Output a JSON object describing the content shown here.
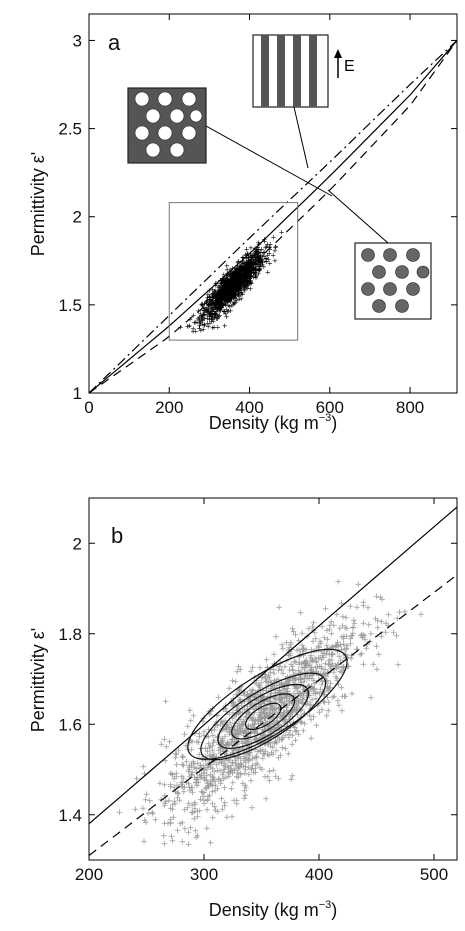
{
  "chart_data": [
    {
      "panel": "a",
      "type": "scatter",
      "xlabel": "Density (kg m",
      "xlabel_sup": "−3",
      "xlabel_close": ")",
      "ylabel": "Permittivity ε'",
      "xlim": [
        0,
        917
      ],
      "ylim": [
        1,
        3.15
      ],
      "xticks": [
        0,
        200,
        400,
        600,
        800
      ],
      "yticks": [
        1,
        1.5,
        2,
        2.5,
        3
      ],
      "ytick_labels": [
        "1",
        "1.5",
        "2",
        "2.5",
        "3"
      ],
      "scatter_cloud": {
        "center": [
          360,
          1.61
        ],
        "approx_range_x": [
          200,
          510
        ],
        "approx_range_y": [
          1.32,
          1.95
        ],
        "color": "#000000"
      },
      "inset_box": {
        "x": [
          200,
          520
        ],
        "y": [
          1.3,
          2.08
        ]
      },
      "lines": [
        {
          "style": "solid",
          "x": [
            0,
            200,
            400,
            600,
            800,
            917
          ],
          "y": [
            1.0,
            1.38,
            1.79,
            2.23,
            2.69,
            3.0
          ]
        },
        {
          "style": "dash-dot",
          "x": [
            0,
            200,
            400,
            600,
            800,
            917
          ],
          "y": [
            1.0,
            1.44,
            1.88,
            2.31,
            2.75,
            3.0
          ]
        },
        {
          "style": "dashed",
          "x": [
            0,
            200,
            400,
            600,
            800,
            917
          ],
          "y": [
            1.0,
            1.32,
            1.71,
            2.15,
            2.63,
            3.0
          ]
        }
      ],
      "insets": [
        {
          "name": "holes",
          "description_icon": "grey-square-with-white-circles"
        },
        {
          "name": "layers",
          "description_icon": "vertical-stripes",
          "field_label": "E"
        },
        {
          "name": "spheres",
          "description_icon": "white-square-with-grey-circles"
        }
      ]
    },
    {
      "panel": "b",
      "type": "scatter",
      "xlabel": "Density (kg m",
      "xlabel_sup": "−3",
      "xlabel_close": ")",
      "ylabel": "Permittivity ε'",
      "xlim": [
        200,
        520
      ],
      "ylim": [
        1.3,
        2.1
      ],
      "xticks": [
        200,
        300,
        400,
        500
      ],
      "yticks": [
        1.4,
        1.6,
        1.8,
        2.0
      ],
      "ytick_labels": [
        "1.4",
        "1.6",
        "1.8",
        "2"
      ],
      "scatter_cloud": {
        "center": [
          350,
          1.61
        ],
        "approx_range_x": [
          225,
          515
        ],
        "approx_range_y": [
          1.33,
          2.02
        ],
        "color": "#9a9a9a"
      },
      "lines": [
        {
          "style": "solid",
          "x": [
            200,
            520
          ],
          "y": [
            1.38,
            2.08
          ]
        },
        {
          "style": "dashed",
          "x": [
            200,
            520
          ],
          "y": [
            1.31,
            1.93
          ]
        }
      ],
      "contours": {
        "center": [
          350,
          1.615
        ],
        "levels": 5
      }
    }
  ]
}
